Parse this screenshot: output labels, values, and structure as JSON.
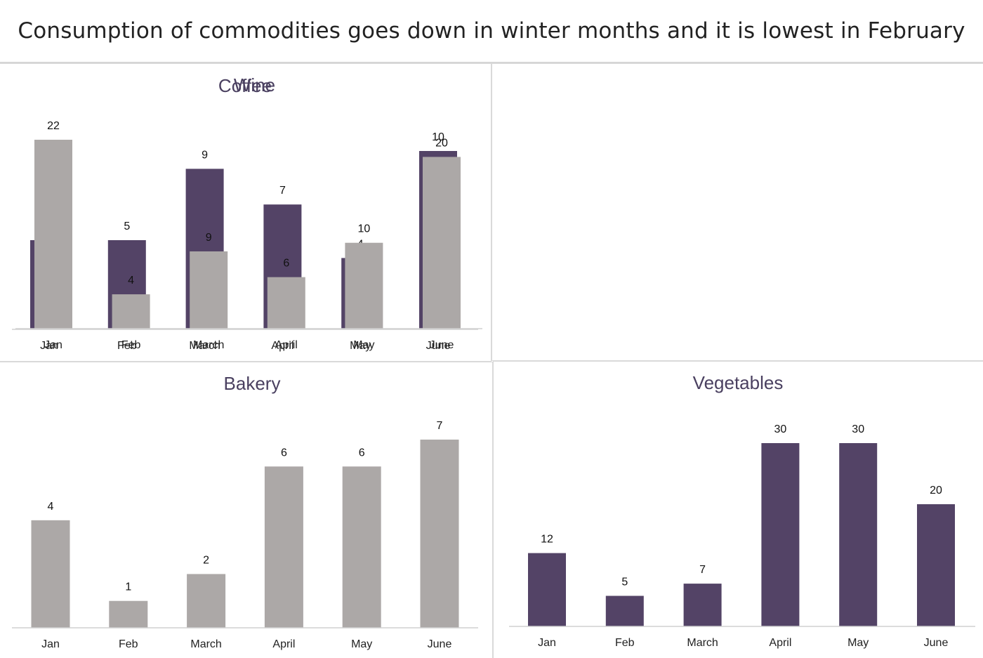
{
  "title": "Consumption of commodities goes down in winter months and it is lowest in February",
  "colors": {
    "purple": "#534366",
    "gray": "#aca8a7"
  },
  "chart_data": [
    {
      "type": "bar",
      "title": "Coffee",
      "categories": [
        "Jan",
        "Feb",
        "March",
        "April",
        "May",
        "June"
      ],
      "values": [
        5,
        5,
        9,
        7,
        4,
        10
      ],
      "color": "#534366",
      "ylim": [
        0,
        10
      ],
      "grid": false
    },
    {
      "type": "bar",
      "title": "Wine",
      "categories": [
        "Jan",
        "Feb",
        "March",
        "April",
        "May",
        "June"
      ],
      "values": [
        22,
        4,
        9,
        6,
        10,
        20
      ],
      "color": "#aca8a7",
      "ylim": [
        0,
        22
      ],
      "grid": false
    },
    {
      "type": "bar",
      "title": "Bakery",
      "categories": [
        "Jan",
        "Feb",
        "March",
        "April",
        "May",
        "June"
      ],
      "values": [
        4,
        1,
        2,
        6,
        6,
        7
      ],
      "color": "#aca8a7",
      "ylim": [
        0,
        7
      ],
      "grid": false
    },
    {
      "type": "bar",
      "title": "Vegetables",
      "categories": [
        "Jan",
        "Feb",
        "March",
        "April",
        "May",
        "June"
      ],
      "values": [
        12,
        5,
        7,
        30,
        30,
        20
      ],
      "color": "#534366",
      "ylim": [
        0,
        30
      ],
      "grid": false
    }
  ]
}
